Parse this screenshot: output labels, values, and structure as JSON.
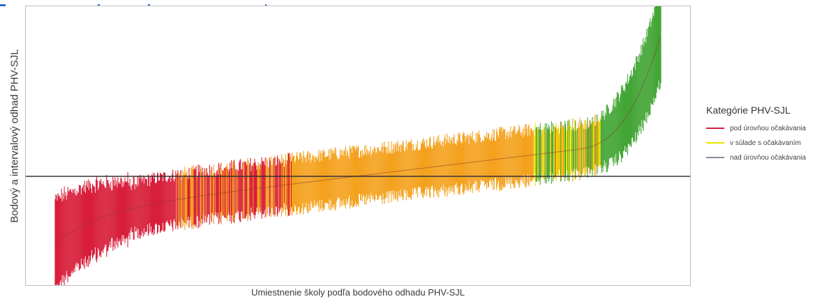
{
  "chart_data": {
    "type": "error-bar",
    "title": "",
    "xlabel": "Umiestnenie školy podľa bodového odhadu PHV-SJL",
    "ylabel": "Bodový a intervalový odhad PHV-SJL",
    "reference_line": 0,
    "legend": {
      "title": "Kategórie PHV-SJL",
      "position": "right",
      "entries": [
        {
          "label": "pod úrovňou očakávania",
          "color": "#d81e3a"
        },
        {
          "label": "v súlade s očakávaním",
          "color": "#f4a21f"
        },
        {
          "label": "nad úrovňou očakávania",
          "color": "#43a535"
        }
      ]
    },
    "colors": {
      "red": "#d81e3a",
      "orange": "#f4a21f",
      "yellow": "#f2e400",
      "green": "#43a535",
      "reference": "#333333",
      "top_fragment": "#2a6fd6"
    }
  }
}
